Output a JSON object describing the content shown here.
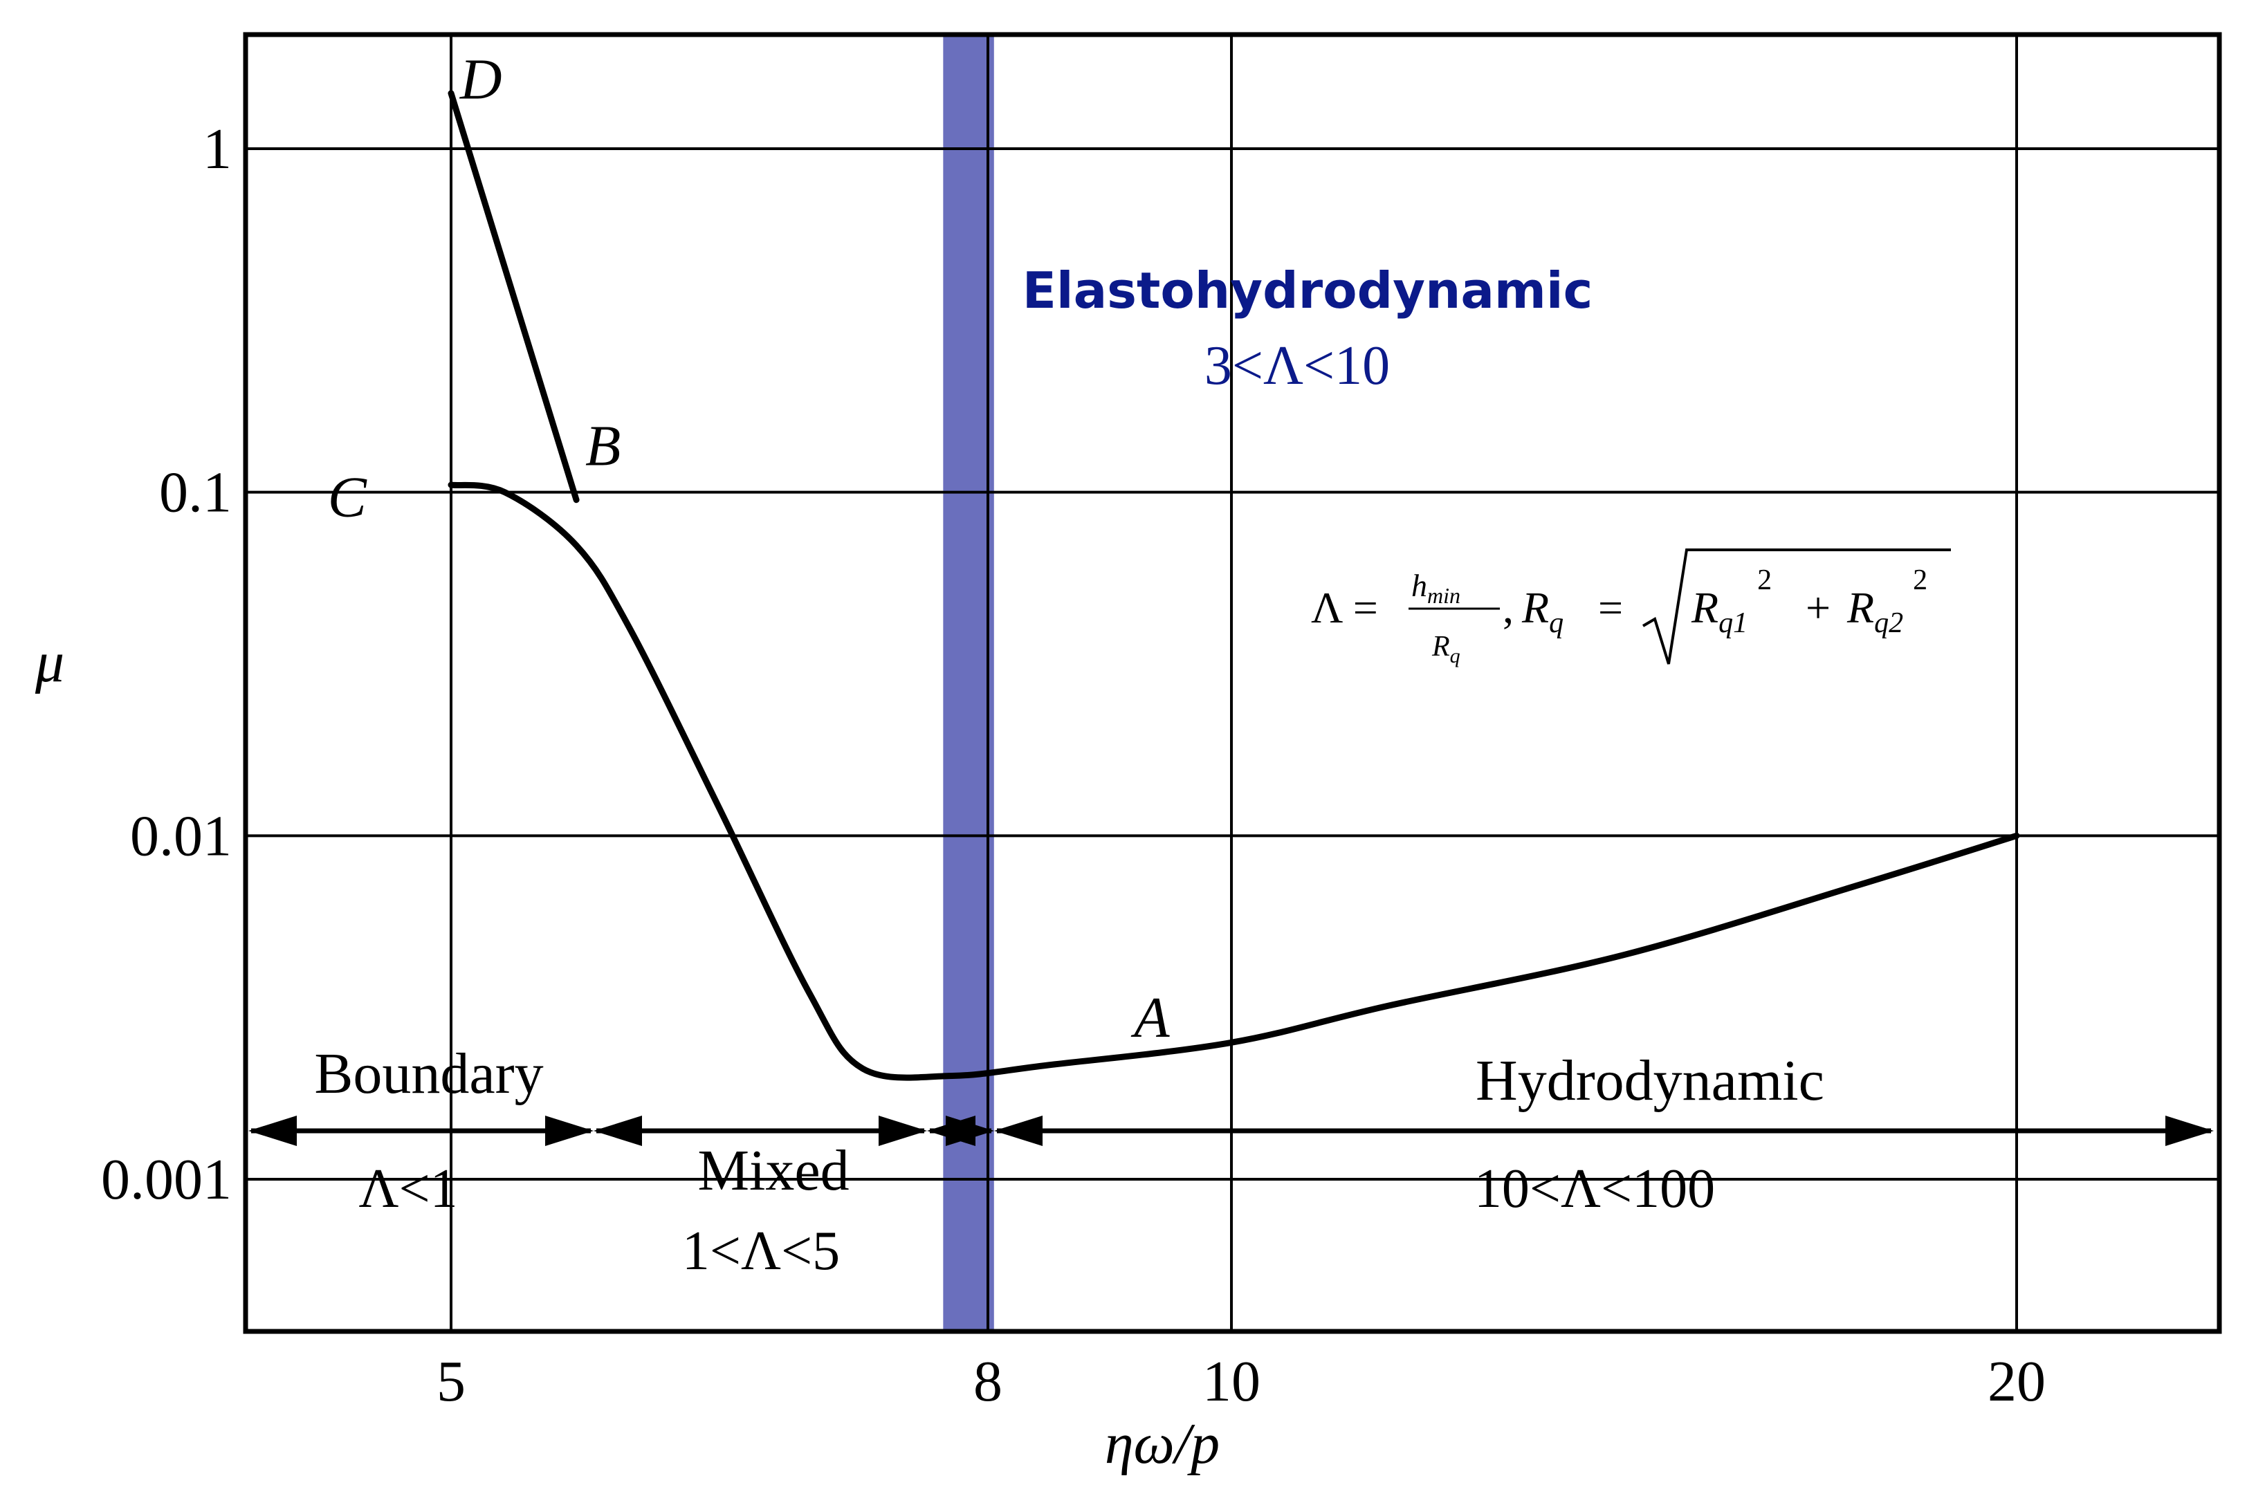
{
  "chart_data": {
    "type": "line",
    "title": "",
    "xlabel": "ηω/p",
    "ylabel": "μ",
    "y_scale": "log",
    "grid": true,
    "x_ticks": [
      {
        "value": 5,
        "label": "5"
      },
      {
        "value": 8,
        "label": "8"
      },
      {
        "value": 10,
        "label": "10"
      },
      {
        "value": 20,
        "label": "20"
      }
    ],
    "y_ticks": [
      {
        "value": 1,
        "label": "1"
      },
      {
        "value": 0.1,
        "label": "0.1"
      },
      {
        "value": 0.01,
        "label": "0.01"
      },
      {
        "value": 0.001,
        "label": "0.001"
      }
    ],
    "series": [
      {
        "points": [
          [
            5,
            0.105
          ],
          [
            5.3,
            0.1
          ],
          [
            5.7,
            0.07
          ],
          [
            6.0,
            0.04
          ],
          [
            6.5,
            0.012
          ],
          [
            7.0,
            0.0035
          ],
          [
            7.3,
            0.0021
          ],
          [
            7.8,
            0.002
          ],
          [
            8.5,
            0.00215
          ],
          [
            10,
            0.0025
          ],
          [
            12,
            0.0032
          ],
          [
            15,
            0.0045
          ],
          [
            18,
            0.0072
          ],
          [
            20,
            0.01
          ]
        ],
        "color": "#000000"
      },
      {
        "points": [
          [
            5,
            1.45
          ],
          [
            5.7,
            0.095
          ]
        ],
        "color": "#000000"
      }
    ],
    "point_labels": [
      {
        "text": "D",
        "x": 5.05,
        "y": 1.4
      },
      {
        "text": "B",
        "x": 5.75,
        "y": 0.12
      },
      {
        "text": "C",
        "x": 4.85,
        "y": 0.085
      },
      {
        "text": "A",
        "x": 9.2,
        "y": 0.0026
      }
    ],
    "highlight_band": {
      "x_from": 7.75,
      "x_to": 8.05,
      "color": "#6a6fbd"
    },
    "regions": [
      {
        "name": "Boundary",
        "condition": "Λ<1"
      },
      {
        "name": "Mixed",
        "condition": "1<Λ<5"
      },
      {
        "name": "Elastohydrodynamic",
        "condition": "3<Λ<10",
        "color": "#0b1a8a"
      },
      {
        "name": "Hydrodynamic",
        "condition": "10<Λ<100"
      }
    ],
    "formula": {
      "lhs": "Λ =",
      "numerator": "h",
      "numerator_sub": "min",
      "denominator": "R",
      "denominator_sub": "q",
      "separator": ",",
      "rq": "R",
      "rq_sub": "q",
      "equals": "=",
      "term1": "R",
      "term1_sub": "q1",
      "term1_sup": "2",
      "plus": "+",
      "term2": "R",
      "term2_sub": "q2",
      "term2_sup": "2"
    }
  }
}
